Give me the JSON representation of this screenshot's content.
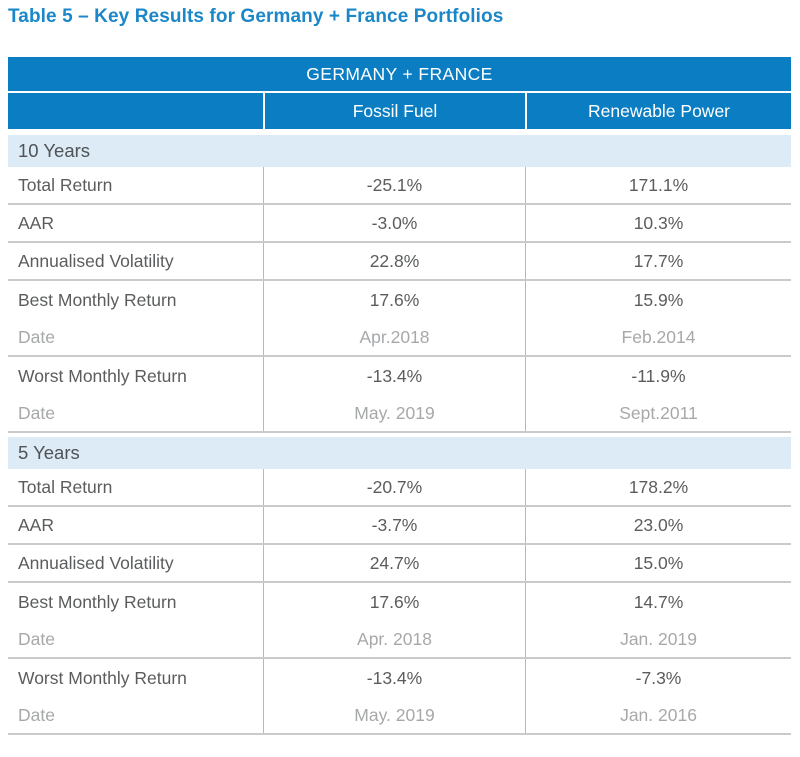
{
  "title": "Table 5 – Key Results for Germany + France Portfolios",
  "colors": {
    "header_blue": "#0b7ec3",
    "section_band_blue": "#dcebf5",
    "title_blue": "#1b87c8",
    "body_text_gray": "#5a5c5e",
    "muted_text_gray": "#a6a8aa",
    "grid_line_gray": "#cacaca"
  },
  "table": {
    "header": "GERMANY + FRANCE",
    "columns": [
      "Fossil Fuel",
      "Renewable Power"
    ],
    "sections": [
      {
        "label": "10 Years",
        "rows": [
          {
            "label": "Total Return",
            "fossil": "-25.1%",
            "renewable": "171.1%"
          },
          {
            "label": "AAR",
            "fossil": "-3.0%",
            "renewable": "10.3%"
          },
          {
            "label": "Annualised Volatility",
            "fossil": "22.8%",
            "renewable": "17.7%"
          },
          {
            "label": "Best Monthly Return",
            "fossil": "17.6%",
            "renewable": "15.9%"
          },
          {
            "label": "Date",
            "fossil": "Apr.2018",
            "renewable": "Feb.2014"
          },
          {
            "label": "Worst Monthly Return",
            "fossil": "-13.4%",
            "renewable": "-11.9%"
          },
          {
            "label": "Date",
            "fossil": "May. 2019",
            "renewable": "Sept.2011"
          }
        ]
      },
      {
        "label": "5 Years",
        "rows": [
          {
            "label": "Total Return",
            "fossil": "-20.7%",
            "renewable": "178.2%"
          },
          {
            "label": "AAR",
            "fossil": "-3.7%",
            "renewable": "23.0%"
          },
          {
            "label": "Annualised Volatility",
            "fossil": "24.7%",
            "renewable": "15.0%"
          },
          {
            "label": "Best Monthly Return",
            "fossil": "17.6%",
            "renewable": "14.7%"
          },
          {
            "label": "Date",
            "fossil": "Apr. 2018",
            "renewable": "Jan. 2019"
          },
          {
            "label": "Worst Monthly Return",
            "fossil": "-13.4%",
            "renewable": "-7.3%"
          },
          {
            "label": "Date",
            "fossil": "May. 2019",
            "renewable": "Jan. 2016"
          }
        ]
      }
    ]
  }
}
